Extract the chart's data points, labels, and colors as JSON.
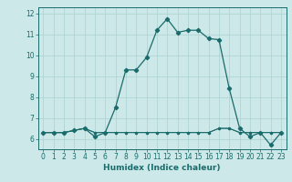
{
  "xlabel": "Humidex (Indice chaleur)",
  "bg_color": "#cce8e8",
  "grid_color": "#b0d4d4",
  "line_color": "#1a6b6b",
  "marker": "D",
  "marker_size": 2.2,
  "x_data": [
    0,
    1,
    2,
    3,
    4,
    5,
    6,
    7,
    8,
    9,
    10,
    11,
    12,
    13,
    14,
    15,
    16,
    17,
    18,
    19,
    20,
    21,
    22,
    23
  ],
  "lines": [
    [
      6.3,
      6.3,
      6.3,
      6.4,
      6.5,
      6.1,
      6.3,
      7.5,
      9.3,
      9.3,
      9.9,
      11.2,
      11.75,
      11.1,
      11.2,
      11.2,
      10.8,
      10.75,
      8.4,
      6.5,
      6.1,
      6.3,
      5.7,
      6.3
    ],
    [
      6.3,
      6.3,
      6.3,
      6.4,
      6.5,
      6.3,
      6.3,
      6.3,
      6.3,
      6.3,
      6.3,
      6.3,
      6.3,
      6.3,
      6.3,
      6.3,
      6.3,
      6.5,
      6.5,
      6.3,
      6.3,
      6.3,
      6.3,
      6.3
    ],
    [
      6.3,
      6.3,
      6.3,
      6.4,
      6.5,
      6.3,
      6.3,
      6.3,
      6.3,
      6.3,
      6.3,
      6.3,
      6.3,
      6.3,
      6.3,
      6.3,
      6.3,
      6.5,
      6.5,
      6.3,
      6.3,
      6.3,
      6.3,
      6.3
    ]
  ],
  "ylim": [
    5.5,
    12.3
  ],
  "xlim": [
    -0.5,
    23.5
  ],
  "yticks": [
    6,
    7,
    8,
    9,
    10,
    11,
    12
  ],
  "xticks": [
    0,
    1,
    2,
    3,
    4,
    5,
    6,
    7,
    8,
    9,
    10,
    11,
    12,
    13,
    14,
    15,
    16,
    17,
    18,
    19,
    20,
    21,
    22,
    23
  ],
  "tick_fontsize": 5.5,
  "xlabel_fontsize": 6.5,
  "linewidth": 0.9
}
